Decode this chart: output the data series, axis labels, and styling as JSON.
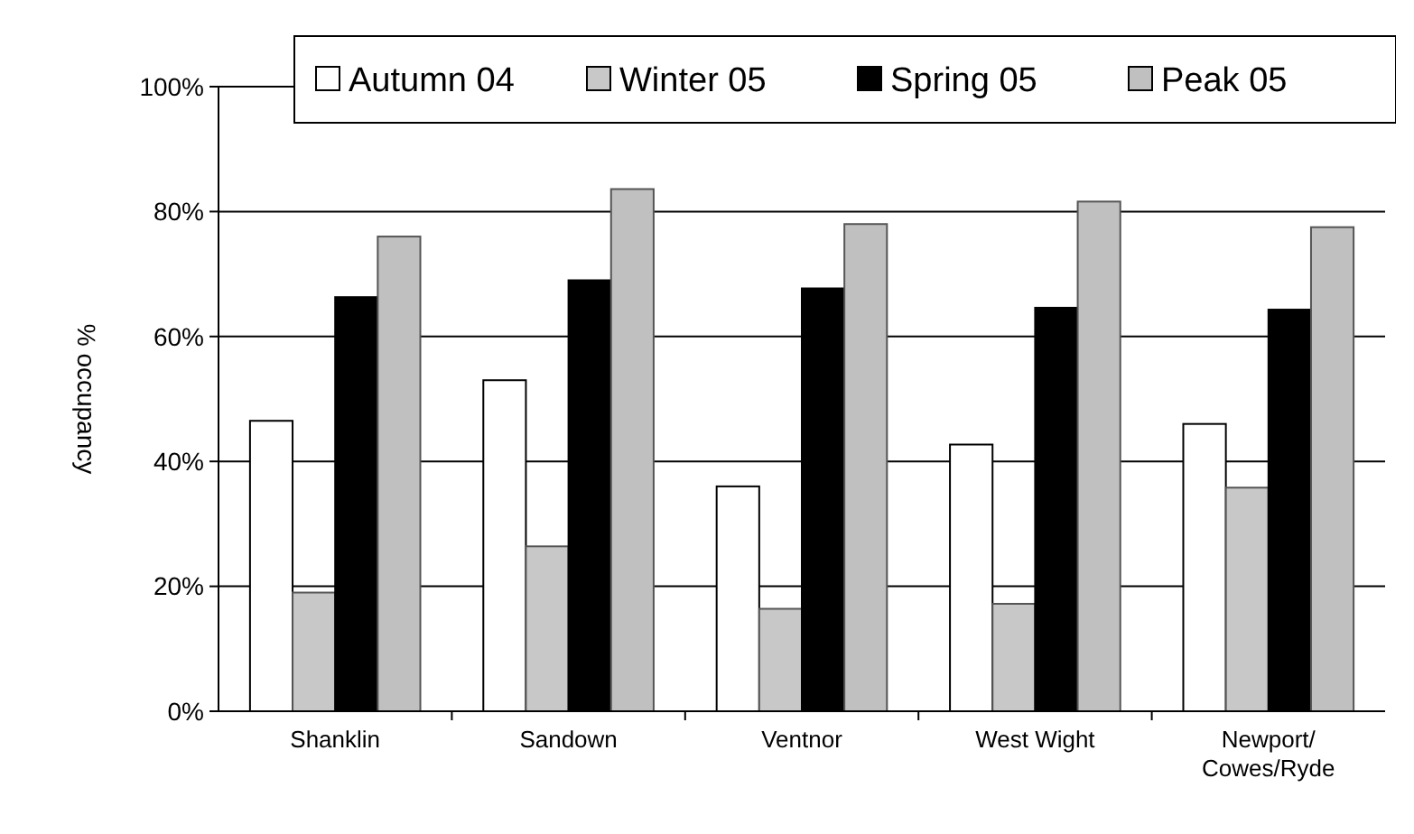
{
  "chart_data": {
    "type": "bar",
    "ylabel": "% occupancy",
    "categories": [
      "Shanklin",
      "Sandown",
      "Ventnor",
      "West Wight",
      "Newport/\nCowes/Ryde"
    ],
    "series": [
      {
        "name": "Autumn 04",
        "color": "#ffffff",
        "values": [
          46.5,
          53,
          36,
          42.7,
          46
        ]
      },
      {
        "name": "Winter 05",
        "color": "#c8c8c8",
        "values": [
          19,
          26.4,
          16.4,
          17.2,
          35.8
        ]
      },
      {
        "name": "Spring 05",
        "color": "#000000",
        "values": [
          66.3,
          69,
          67.7,
          64.6,
          64.3
        ]
      },
      {
        "name": "Peak 05",
        "color": "#c0c0c0",
        "values": [
          76,
          83.6,
          78,
          81.6,
          77.5
        ]
      }
    ],
    "ylim": [
      0,
      100
    ],
    "yticks": [
      {
        "value": 0,
        "label": "0%"
      },
      {
        "value": 20,
        "label": "20%"
      },
      {
        "value": 40,
        "label": "40%"
      },
      {
        "value": 60,
        "label": "60%"
      },
      {
        "value": 80,
        "label": "80%"
      },
      {
        "value": 100,
        "label": "100%"
      }
    ],
    "grid": "y",
    "legend": "top right"
  }
}
